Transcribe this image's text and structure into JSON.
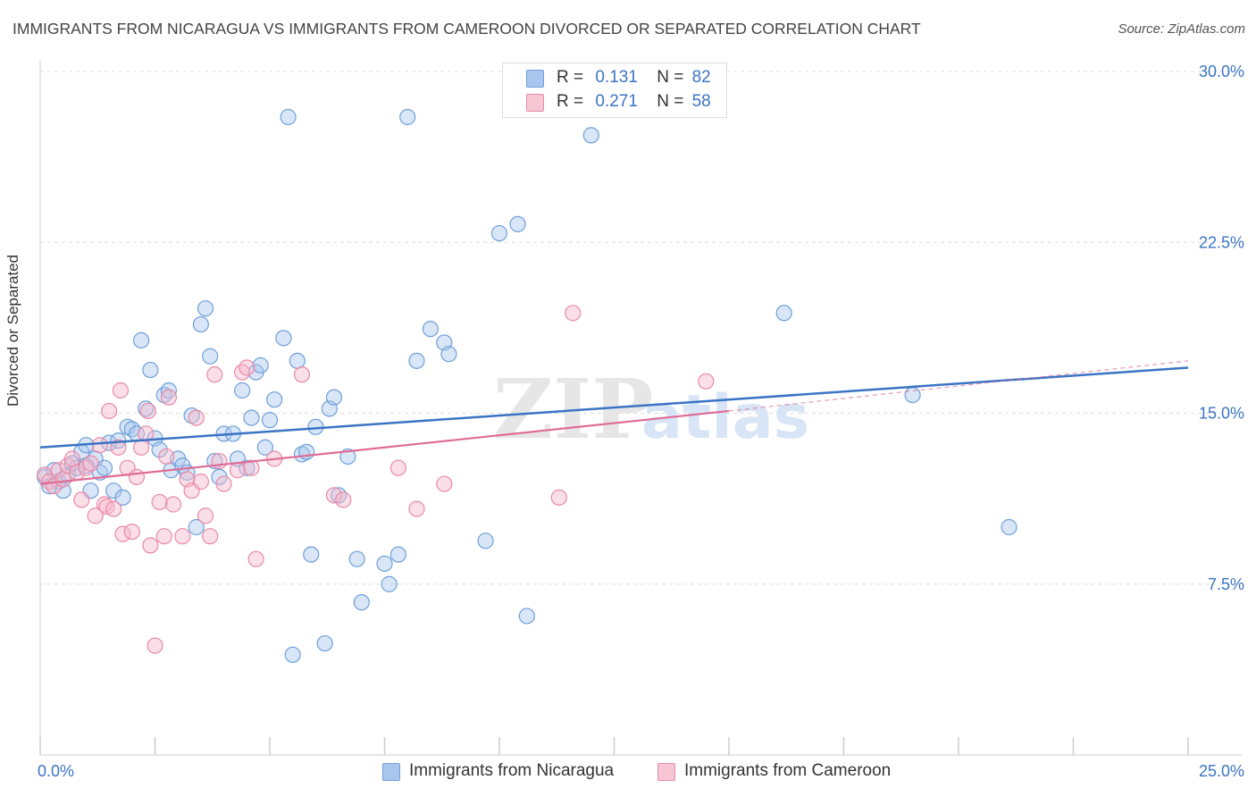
{
  "header": {
    "title": "IMMIGRANTS FROM NICARAGUA VS IMMIGRANTS FROM CAMEROON DIVORCED OR SEPARATED CORRELATION CHART",
    "source": "Source: ZipAtlas.com"
  },
  "watermark": "ZIPatlas",
  "colors": {
    "blue_fill": "#a9c7ee",
    "blue_stroke": "#6f9fd9",
    "blue_line": "#3a74c4",
    "pink_fill": "#f6b9cb",
    "pink_stroke": "#e88aa7",
    "pink_line": "#e06b95",
    "tick_label": "#3a74c4",
    "grid": "#dddddd"
  },
  "legend": {
    "rows": [
      {
        "r_label": "R =",
        "r_value": "0.131",
        "n_label": "N =",
        "n_value": "82"
      },
      {
        "r_label": "R =",
        "r_value": "0.271",
        "n_label": "N =",
        "n_value": "58"
      }
    ]
  },
  "chart_data": {
    "type": "scatter",
    "title": "IMMIGRANTS FROM NICARAGUA VS IMMIGRANTS FROM CAMEROON DIVORCED OR SEPARATED CORRELATION CHART",
    "xlabel": "",
    "ylabel": "Divorced or Separated",
    "xlim": [
      0,
      25
    ],
    "ylim": [
      0,
      30
    ],
    "x_tick_labels": [
      "0.0%",
      "25.0%"
    ],
    "y_ticks": [
      7.5,
      15.0,
      22.5,
      30.0
    ],
    "y_tick_labels": [
      "7.5%",
      "15.0%",
      "22.5%",
      "30.0%"
    ],
    "grid": true,
    "legend_position": "top-center",
    "series": [
      {
        "name": "Immigrants from Nicaragua",
        "color": "blue",
        "r": 0.131,
        "n": 82,
        "trend": {
          "x": [
            0,
            25
          ],
          "y": [
            13.5,
            17.0
          ]
        },
        "points": [
          [
            0.1,
            12.2
          ],
          [
            0.2,
            11.8
          ],
          [
            0.3,
            12.5
          ],
          [
            0.4,
            12.0
          ],
          [
            0.5,
            11.6
          ],
          [
            0.6,
            12.3
          ],
          [
            0.7,
            12.8
          ],
          [
            0.8,
            12.6
          ],
          [
            0.9,
            13.3
          ],
          [
            1.0,
            12.7
          ],
          [
            1.0,
            13.6
          ],
          [
            1.1,
            11.6
          ],
          [
            1.2,
            13.0
          ],
          [
            1.3,
            12.4
          ],
          [
            1.4,
            12.6
          ],
          [
            1.5,
            13.7
          ],
          [
            1.6,
            11.6
          ],
          [
            1.7,
            13.8
          ],
          [
            1.8,
            11.3
          ],
          [
            1.9,
            14.4
          ],
          [
            2.0,
            14.3
          ],
          [
            2.1,
            14.1
          ],
          [
            2.2,
            18.2
          ],
          [
            2.3,
            15.2
          ],
          [
            2.4,
            16.9
          ],
          [
            2.5,
            13.9
          ],
          [
            2.6,
            13.4
          ],
          [
            2.7,
            15.8
          ],
          [
            2.8,
            16.0
          ],
          [
            2.85,
            12.5
          ],
          [
            3.0,
            13.0
          ],
          [
            3.1,
            12.7
          ],
          [
            3.2,
            12.4
          ],
          [
            3.3,
            14.9
          ],
          [
            3.4,
            10.0
          ],
          [
            3.5,
            18.9
          ],
          [
            3.6,
            19.6
          ],
          [
            3.7,
            17.5
          ],
          [
            3.8,
            12.9
          ],
          [
            3.9,
            12.2
          ],
          [
            4.0,
            14.1
          ],
          [
            4.2,
            14.1
          ],
          [
            4.3,
            13.0
          ],
          [
            4.4,
            16.0
          ],
          [
            4.5,
            12.6
          ],
          [
            4.6,
            14.8
          ],
          [
            4.7,
            16.8
          ],
          [
            4.8,
            17.1
          ],
          [
            4.9,
            13.5
          ],
          [
            5.0,
            14.7
          ],
          [
            5.1,
            15.6
          ],
          [
            5.3,
            18.3
          ],
          [
            5.4,
            28.0
          ],
          [
            5.5,
            4.4
          ],
          [
            5.6,
            17.3
          ],
          [
            5.7,
            13.2
          ],
          [
            5.8,
            13.3
          ],
          [
            5.9,
            8.8
          ],
          [
            6.0,
            14.4
          ],
          [
            6.2,
            4.9
          ],
          [
            6.3,
            15.2
          ],
          [
            6.4,
            15.7
          ],
          [
            6.5,
            11.4
          ],
          [
            6.7,
            13.1
          ],
          [
            6.9,
            8.6
          ],
          [
            7.0,
            6.7
          ],
          [
            7.5,
            8.4
          ],
          [
            7.6,
            7.5
          ],
          [
            7.8,
            8.8
          ],
          [
            8.0,
            28.0
          ],
          [
            8.2,
            17.3
          ],
          [
            8.5,
            18.7
          ],
          [
            8.8,
            18.1
          ],
          [
            8.9,
            17.6
          ],
          [
            9.7,
            9.4
          ],
          [
            10.0,
            22.9
          ],
          [
            10.4,
            23.3
          ],
          [
            10.6,
            6.1
          ],
          [
            12.0,
            27.2
          ],
          [
            16.2,
            19.4
          ],
          [
            19.0,
            15.8
          ],
          [
            21.1,
            10.0
          ]
        ]
      },
      {
        "name": "Immigrants from Cameroon",
        "color": "pink",
        "r": 0.271,
        "n": 58,
        "trend": {
          "x": [
            0,
            15
          ],
          "y": [
            11.9,
            15.1
          ]
        },
        "trend_extended": {
          "x": [
            15,
            25
          ],
          "y": [
            15.1,
            17.3
          ]
        },
        "points": [
          [
            0.1,
            12.3
          ],
          [
            0.2,
            12.0
          ],
          [
            0.3,
            11.8
          ],
          [
            0.4,
            12.5
          ],
          [
            0.5,
            12.1
          ],
          [
            0.6,
            12.7
          ],
          [
            0.7,
            13.0
          ],
          [
            0.8,
            12.4
          ],
          [
            0.9,
            11.2
          ],
          [
            1.0,
            12.6
          ],
          [
            1.1,
            12.8
          ],
          [
            1.2,
            10.5
          ],
          [
            1.3,
            13.6
          ],
          [
            1.4,
            11.0
          ],
          [
            1.45,
            10.9
          ],
          [
            1.5,
            15.1
          ],
          [
            1.6,
            10.8
          ],
          [
            1.7,
            13.5
          ],
          [
            1.75,
            16.0
          ],
          [
            1.8,
            9.7
          ],
          [
            1.9,
            12.6
          ],
          [
            2.0,
            9.8
          ],
          [
            2.1,
            12.2
          ],
          [
            2.2,
            13.5
          ],
          [
            2.3,
            14.1
          ],
          [
            2.35,
            15.1
          ],
          [
            2.4,
            9.2
          ],
          [
            2.5,
            4.8
          ],
          [
            2.6,
            11.1
          ],
          [
            2.7,
            9.6
          ],
          [
            2.75,
            13.1
          ],
          [
            2.8,
            15.7
          ],
          [
            2.9,
            11.0
          ],
          [
            3.1,
            9.6
          ],
          [
            3.2,
            12.1
          ],
          [
            3.3,
            11.6
          ],
          [
            3.4,
            14.8
          ],
          [
            3.5,
            12.0
          ],
          [
            3.6,
            10.5
          ],
          [
            3.7,
            9.6
          ],
          [
            3.8,
            16.7
          ],
          [
            3.9,
            12.9
          ],
          [
            4.0,
            11.9
          ],
          [
            4.3,
            12.5
          ],
          [
            4.4,
            16.8
          ],
          [
            4.5,
            17.0
          ],
          [
            4.6,
            12.6
          ],
          [
            4.7,
            8.6
          ],
          [
            5.1,
            13.0
          ],
          [
            5.7,
            16.7
          ],
          [
            6.4,
            11.4
          ],
          [
            6.6,
            11.2
          ],
          [
            7.8,
            12.6
          ],
          [
            8.2,
            10.8
          ],
          [
            8.8,
            11.9
          ],
          [
            11.3,
            11.3
          ],
          [
            11.6,
            19.4
          ],
          [
            14.5,
            16.4
          ]
        ]
      }
    ]
  }
}
